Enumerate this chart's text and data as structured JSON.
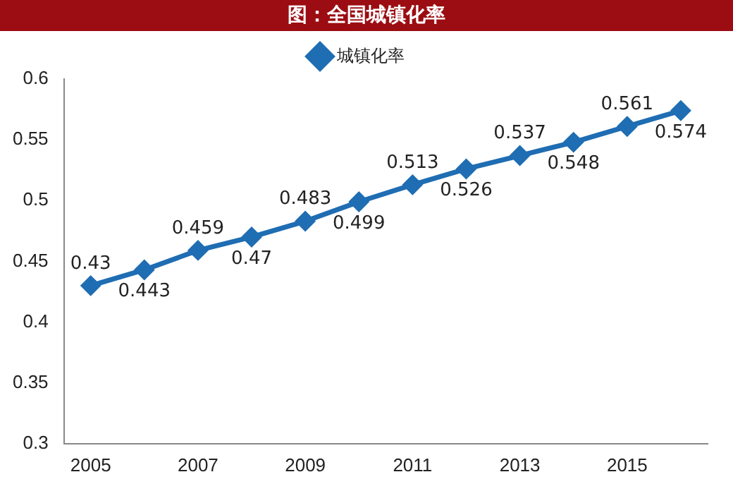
{
  "chart_data": {
    "type": "line",
    "title": "图：全国城镇化率",
    "categories": [
      "2005",
      null,
      "2007",
      null,
      "2009",
      null,
      "2011",
      null,
      "2013",
      null,
      "2015",
      null
    ],
    "series": [
      {
        "name": "城镇化率",
        "color": "#1f6db3",
        "values": [
          0.43,
          0.443,
          0.459,
          0.47,
          0.483,
          0.499,
          0.513,
          0.526,
          0.537,
          0.548,
          0.561,
          0.574
        ]
      }
    ],
    "ylim": [
      0.3,
      0.6
    ],
    "yticks": [
      0.3,
      0.35,
      0.4,
      0.45,
      0.5,
      0.55,
      0.6
    ],
    "grid": false,
    "legend": "top",
    "marker": "diamond",
    "line_style": "solid",
    "data_labels": true
  }
}
